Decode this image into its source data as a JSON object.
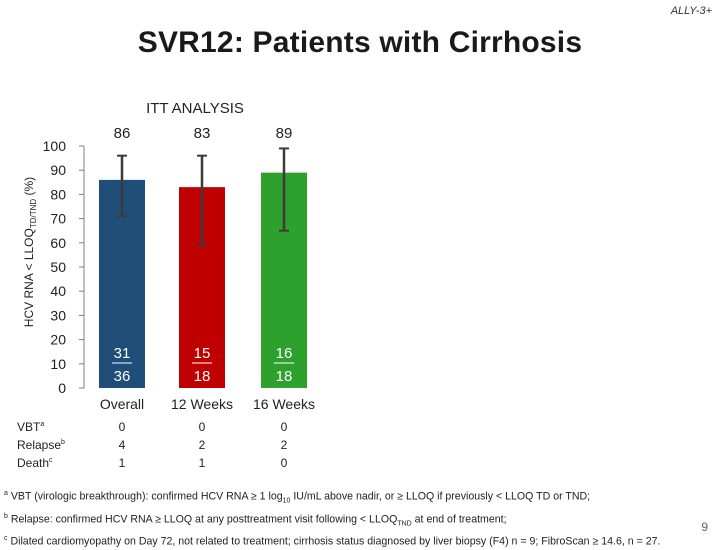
{
  "slide": {
    "tag": "ALLY-3+",
    "title": "SVR12: Patients with Cirrhosis",
    "page_number": "9"
  },
  "chart_data": {
    "type": "bar",
    "subtitle": "ITT ANALYSIS",
    "ylabel_main": "HCV RNA < LLOQ",
    "ylabel_sub": "TD/TND",
    "ylabel_suffix": " (%)",
    "ylim": [
      0,
      100
    ],
    "yticks": [
      0,
      10,
      20,
      30,
      40,
      50,
      60,
      70,
      80,
      90,
      100
    ],
    "categories": [
      "Overall",
      "12 Weeks",
      "16 Weeks"
    ],
    "values": [
      86,
      83,
      89
    ],
    "value_labels": [
      "86",
      "83",
      "89"
    ],
    "error_low": [
      71,
      59,
      65
    ],
    "error_high": [
      96,
      96,
      99
    ],
    "numerators": [
      "31",
      "15",
      "16"
    ],
    "denominators": [
      "36",
      "18",
      "18"
    ],
    "colors": [
      "#1f4e79",
      "#c00000",
      "#2ea02e"
    ],
    "error_color": "#3b3b3b",
    "grid": false
  },
  "table": {
    "rows": [
      {
        "label": "VBT",
        "sup": "a",
        "values": [
          "0",
          "0",
          "0"
        ]
      },
      {
        "label": "Relapse",
        "sup": "b",
        "values": [
          "4",
          "2",
          "2"
        ]
      },
      {
        "label": "Death",
        "sup": "c",
        "values": [
          "1",
          "1",
          "0"
        ]
      }
    ]
  },
  "footnotes": {
    "a_mark": "a",
    "a_text_1": " VBT (virologic breakthrough): confirmed HCV RNA ≥ 1 log",
    "a_sub": "10",
    "a_text_2": " IU/mL above nadir, or ≥ LLOQ if previously < LLOQ TD or TND;",
    "b_mark": "b",
    "b_text_1": " Relapse: confirmed HCV RNA ≥ LLOQ at any posttreatment visit following < LLOQ",
    "b_sub": "TND",
    "b_text_2": " at end of treatment;",
    "c_mark": "c",
    "c_text": " Dilated cardiomyopathy on Day 72, not related to treatment; cirrhosis status diagnosed by liver biopsy (F4) n = 9; FibroScan ≥ 14.6, n = 27."
  }
}
